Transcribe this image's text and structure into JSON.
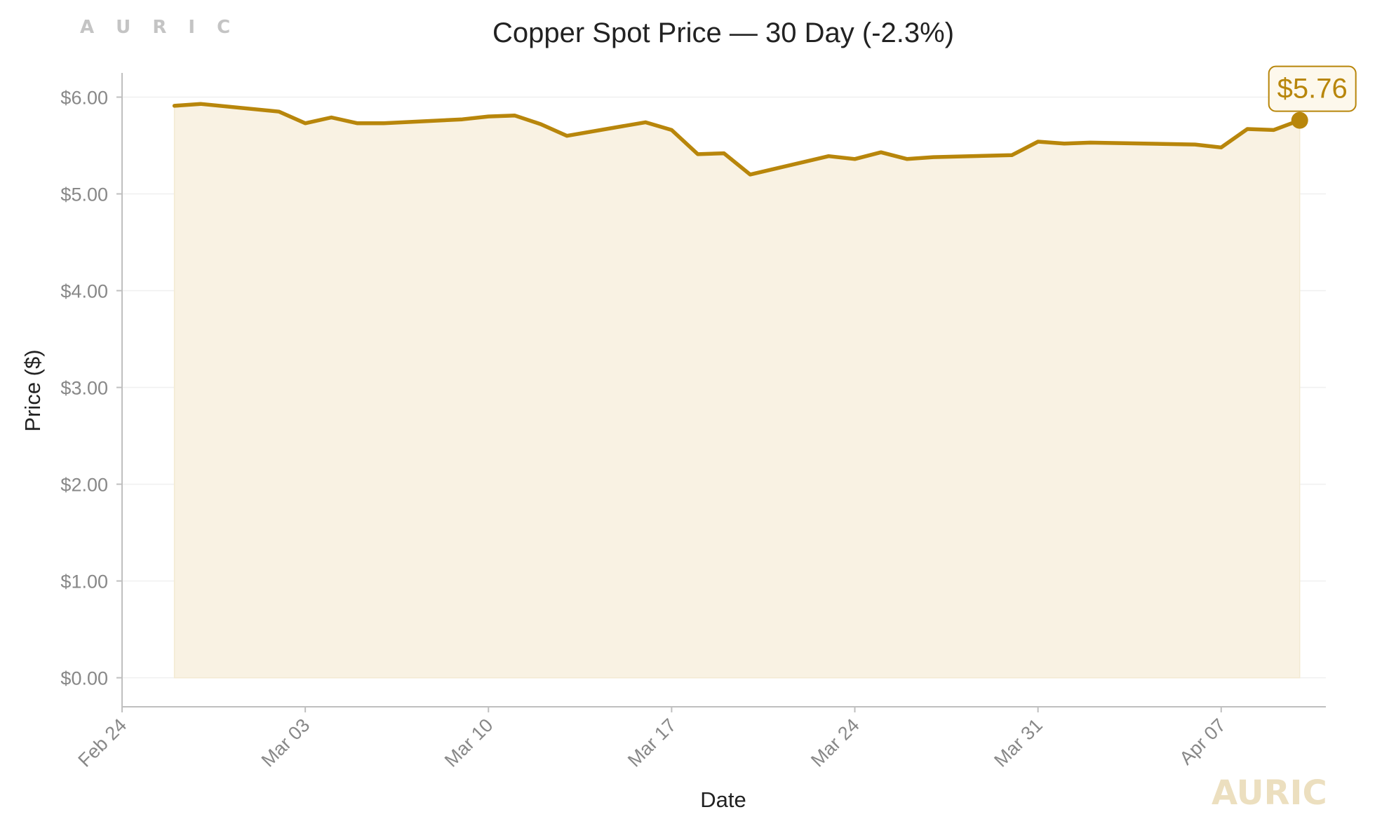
{
  "brand": {
    "top": "A U R I C",
    "bottom": "AURIC"
  },
  "chart_data": {
    "type": "area",
    "title": "Copper Spot Price — 30 Day (-2.3%)",
    "xlabel": "Date",
    "ylabel": "Price ($)",
    "x_tick_labels": [
      "Feb 24",
      "Mar 03",
      "Mar 10",
      "Mar 17",
      "Mar 24",
      "Mar 31",
      "Apr 07"
    ],
    "x_ticks": [
      "2025-02-24",
      "2025-03-03",
      "2025-03-10",
      "2025-03-17",
      "2025-03-24",
      "2025-03-31",
      "2025-04-07"
    ],
    "y_tick_labels": [
      "$0.00",
      "$1.00",
      "$2.00",
      "$3.00",
      "$4.00",
      "$5.00",
      "$6.00"
    ],
    "y_ticks": [
      0,
      1,
      2,
      3,
      4,
      5,
      6
    ],
    "xlim": [
      "2025-02-24",
      "2025-04-11"
    ],
    "ylim": [
      -0.3,
      6.25
    ],
    "grid": true,
    "series": [
      {
        "points": [
          {
            "x": "2025-02-26",
            "y": 5.91
          },
          {
            "x": "2025-02-27",
            "y": 5.93
          },
          {
            "x": "2025-03-02",
            "y": 5.85
          },
          {
            "x": "2025-03-03",
            "y": 5.73
          },
          {
            "x": "2025-03-04",
            "y": 5.79
          },
          {
            "x": "2025-03-05",
            "y": 5.73
          },
          {
            "x": "2025-03-06",
            "y": 5.73
          },
          {
            "x": "2025-03-09",
            "y": 5.77
          },
          {
            "x": "2025-03-10",
            "y": 5.8
          },
          {
            "x": "2025-03-11",
            "y": 5.81
          },
          {
            "x": "2025-03-12",
            "y": 5.72
          },
          {
            "x": "2025-03-13",
            "y": 5.6
          },
          {
            "x": "2025-03-16",
            "y": 5.74
          },
          {
            "x": "2025-03-17",
            "y": 5.66
          },
          {
            "x": "2025-03-18",
            "y": 5.41
          },
          {
            "x": "2025-03-19",
            "y": 5.42
          },
          {
            "x": "2025-03-20",
            "y": 5.2
          },
          {
            "x": "2025-03-23",
            "y": 5.39
          },
          {
            "x": "2025-03-24",
            "y": 5.36
          },
          {
            "x": "2025-03-25",
            "y": 5.43
          },
          {
            "x": "2025-03-26",
            "y": 5.36
          },
          {
            "x": "2025-03-27",
            "y": 5.38
          },
          {
            "x": "2025-03-30",
            "y": 5.4
          },
          {
            "x": "2025-03-31",
            "y": 5.54
          },
          {
            "x": "2025-04-01",
            "y": 5.52
          },
          {
            "x": "2025-04-02",
            "y": 5.53
          },
          {
            "x": "2025-04-06",
            "y": 5.51
          },
          {
            "x": "2025-04-07",
            "y": 5.48
          },
          {
            "x": "2025-04-08",
            "y": 5.67
          },
          {
            "x": "2025-04-09",
            "y": 5.66
          },
          {
            "x": "2025-04-10",
            "y": 5.76
          }
        ]
      }
    ],
    "last_value_label": "$5.76",
    "colors": {
      "line": "#b8860b",
      "fill": "#f9f2e3",
      "grid": "#f0f0f0",
      "axis": "#bfbfbf",
      "tick_text": "#888888",
      "label_text": "#222222"
    }
  }
}
